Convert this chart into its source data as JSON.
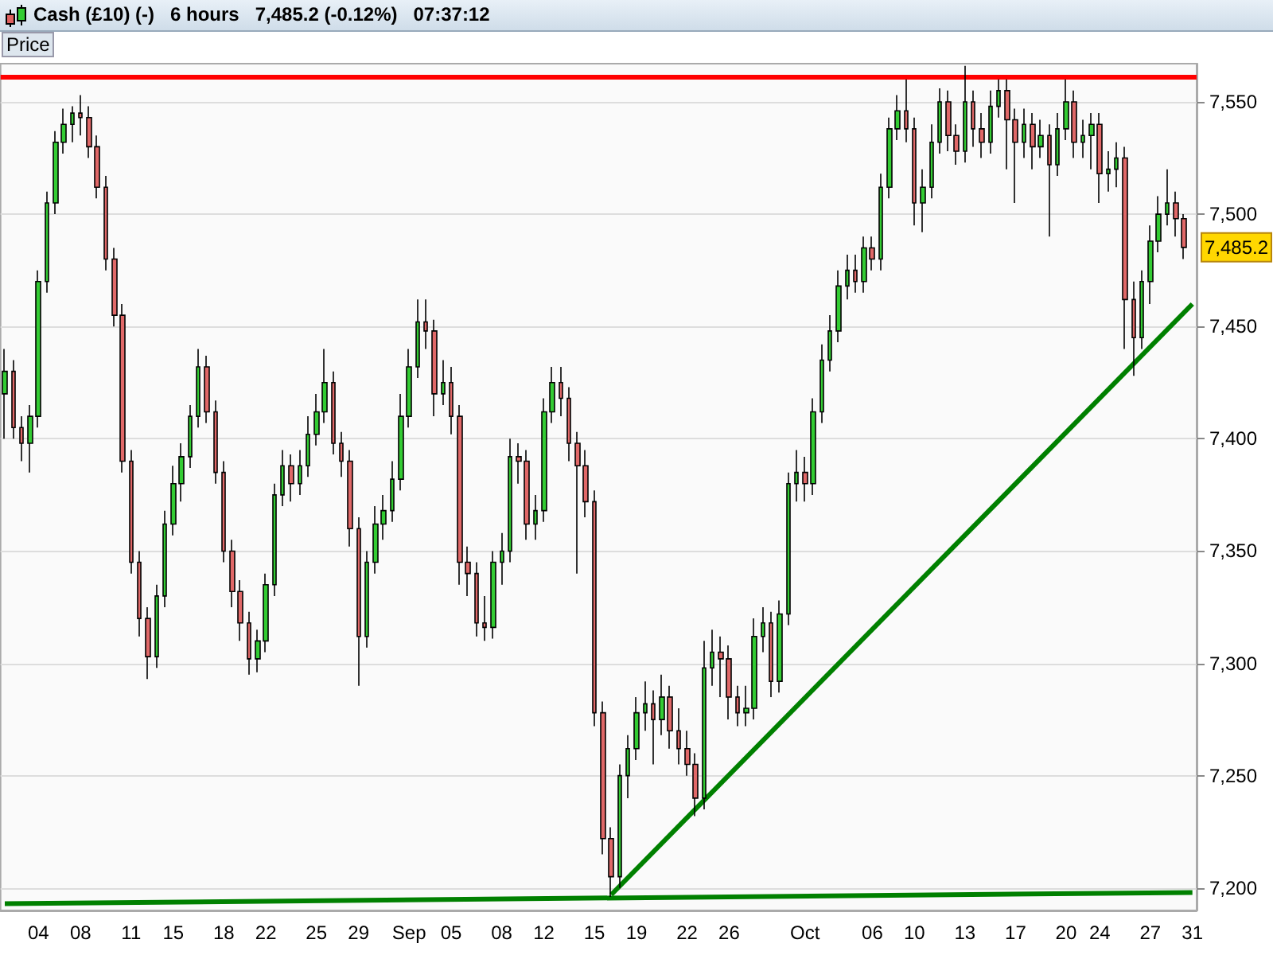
{
  "chart_data": {
    "type": "candlestick",
    "title": "Cash (£10) (-)   6 hours   7,485.2 (-0.12%)   07:37:12",
    "categories": [
      null,
      null,
      null,
      null,
      "04",
      null,
      null,
      null,
      null,
      "08",
      null,
      null,
      null,
      null,
      null,
      "11",
      null,
      null,
      null,
      null,
      "15",
      null,
      null,
      null,
      null,
      null,
      "18",
      null,
      null,
      null,
      null,
      "22",
      null,
      null,
      null,
      null,
      null,
      "25",
      null,
      null,
      null,
      null,
      "29",
      null,
      null,
      null,
      null,
      null,
      "Sep",
      null,
      null,
      null,
      null,
      "05",
      null,
      null,
      null,
      null,
      null,
      "08",
      null,
      null,
      null,
      null,
      "12",
      null,
      null,
      null,
      null,
      null,
      "15",
      null,
      null,
      null,
      null,
      "19",
      null,
      null,
      null,
      null,
      null,
      "22",
      null,
      null,
      null,
      null,
      "26",
      null,
      null,
      null,
      null,
      null,
      null,
      null,
      null,
      "Oct",
      null,
      null,
      null,
      null,
      null,
      null,
      null,
      "06",
      null,
      null,
      null,
      null,
      "10",
      null,
      null,
      null,
      null,
      null,
      "13",
      null,
      null,
      null,
      null,
      null,
      "17",
      null,
      null,
      null,
      null,
      null,
      "20",
      null,
      null,
      null,
      "24",
      null,
      null,
      null,
      null,
      null,
      "27",
      null,
      null,
      null,
      null,
      "31"
    ],
    "ohlc": [
      [
        7420,
        7440,
        7400,
        7430
      ],
      [
        7430,
        7435,
        7400,
        7405
      ],
      [
        7405,
        7410,
        7390,
        7398
      ],
      [
        7398,
        7415,
        7385,
        7410
      ],
      [
        7410,
        7475,
        7405,
        7470
      ],
      [
        7470,
        7510,
        7465,
        7505
      ],
      [
        7505,
        7537,
        7500,
        7532
      ],
      [
        7532,
        7547,
        7527,
        7540
      ],
      [
        7540,
        7548,
        7532,
        7545
      ],
      [
        7545,
        7553,
        7535,
        7543
      ],
      [
        7543,
        7548,
        7525,
        7530
      ],
      [
        7530,
        7535,
        7507,
        7512
      ],
      [
        7512,
        7517,
        7475,
        7480
      ],
      [
        7480,
        7485,
        7450,
        7455
      ],
      [
        7455,
        7460,
        7385,
        7390
      ],
      [
        7390,
        7395,
        7340,
        7345
      ],
      [
        7345,
        7350,
        7312,
        7320
      ],
      [
        7320,
        7325,
        7293,
        7303
      ],
      [
        7303,
        7335,
        7298,
        7330
      ],
      [
        7330,
        7368,
        7325,
        7362
      ],
      [
        7362,
        7388,
        7357,
        7380
      ],
      [
        7380,
        7398,
        7372,
        7392
      ],
      [
        7392,
        7415,
        7387,
        7410
      ],
      [
        7410,
        7440,
        7405,
        7432
      ],
      [
        7432,
        7437,
        7407,
        7412
      ],
      [
        7412,
        7417,
        7380,
        7385
      ],
      [
        7385,
        7390,
        7345,
        7350
      ],
      [
        7350,
        7355,
        7325,
        7332
      ],
      [
        7332,
        7337,
        7310,
        7318
      ],
      [
        7318,
        7323,
        7295,
        7302
      ],
      [
        7302,
        7315,
        7296,
        7310
      ],
      [
        7310,
        7340,
        7305,
        7335
      ],
      [
        7335,
        7380,
        7330,
        7375
      ],
      [
        7375,
        7395,
        7370,
        7388
      ],
      [
        7388,
        7393,
        7372,
        7380
      ],
      [
        7380,
        7395,
        7375,
        7388
      ],
      [
        7388,
        7410,
        7383,
        7402
      ],
      [
        7402,
        7420,
        7397,
        7412
      ],
      [
        7412,
        7440,
        7407,
        7425
      ],
      [
        7425,
        7430,
        7393,
        7398
      ],
      [
        7398,
        7403,
        7383,
        7390
      ],
      [
        7390,
        7395,
        7352,
        7360
      ],
      [
        7360,
        7365,
        7290,
        7312
      ],
      [
        7312,
        7350,
        7307,
        7345
      ],
      [
        7345,
        7370,
        7340,
        7362
      ],
      [
        7362,
        7375,
        7355,
        7368
      ],
      [
        7368,
        7390,
        7363,
        7382
      ],
      [
        7382,
        7420,
        7377,
        7410
      ],
      [
        7410,
        7440,
        7405,
        7432
      ],
      [
        7432,
        7462,
        7427,
        7452
      ],
      [
        7452,
        7462,
        7440,
        7448
      ],
      [
        7448,
        7453,
        7410,
        7420
      ],
      [
        7420,
        7435,
        7415,
        7425
      ],
      [
        7425,
        7432,
        7402,
        7410
      ],
      [
        7410,
        7415,
        7335,
        7345
      ],
      [
        7345,
        7352,
        7330,
        7340
      ],
      [
        7340,
        7345,
        7312,
        7318
      ],
      [
        7318,
        7330,
        7310,
        7316
      ],
      [
        7316,
        7350,
        7311,
        7345
      ],
      [
        7345,
        7358,
        7335,
        7350
      ],
      [
        7350,
        7400,
        7345,
        7392
      ],
      [
        7392,
        7398,
        7380,
        7390
      ],
      [
        7390,
        7395,
        7355,
        7362
      ],
      [
        7362,
        7375,
        7355,
        7368
      ],
      [
        7368,
        7418,
        7363,
        7412
      ],
      [
        7412,
        7432,
        7407,
        7425
      ],
      [
        7425,
        7432,
        7410,
        7418
      ],
      [
        7418,
        7423,
        7390,
        7398
      ],
      [
        7398,
        7403,
        7340,
        7388
      ],
      [
        7388,
        7395,
        7365,
        7372
      ],
      [
        7372,
        7377,
        7272,
        7278
      ],
      [
        7278,
        7283,
        7215,
        7222
      ],
      [
        7222,
        7227,
        7196,
        7205
      ],
      [
        7205,
        7255,
        7200,
        7250
      ],
      [
        7250,
        7268,
        7240,
        7262
      ],
      [
        7262,
        7285,
        7257,
        7278
      ],
      [
        7278,
        7292,
        7270,
        7282
      ],
      [
        7282,
        7288,
        7255,
        7275
      ],
      [
        7275,
        7295,
        7268,
        7285
      ],
      [
        7285,
        7290,
        7262,
        7270
      ],
      [
        7270,
        7280,
        7255,
        7262
      ],
      [
        7262,
        7270,
        7250,
        7255
      ],
      [
        7255,
        7260,
        7232,
        7240
      ],
      [
        7240,
        7310,
        7235,
        7298
      ],
      [
        7298,
        7315,
        7290,
        7305
      ],
      [
        7305,
        7312,
        7285,
        7302
      ],
      [
        7302,
        7308,
        7275,
        7285
      ],
      [
        7285,
        7290,
        7272,
        7278
      ],
      [
        7278,
        7290,
        7272,
        7280
      ],
      [
        7280,
        7320,
        7275,
        7312
      ],
      [
        7312,
        7325,
        7305,
        7318
      ],
      [
        7318,
        7323,
        7285,
        7292
      ],
      [
        7292,
        7328,
        7287,
        7322
      ],
      [
        7322,
        7385,
        7317,
        7380
      ],
      [
        7380,
        7395,
        7372,
        7385
      ],
      [
        7385,
        7392,
        7372,
        7380
      ],
      [
        7380,
        7418,
        7375,
        7412
      ],
      [
        7412,
        7442,
        7407,
        7435
      ],
      [
        7435,
        7455,
        7430,
        7448
      ],
      [
        7448,
        7475,
        7443,
        7468
      ],
      [
        7468,
        7482,
        7462,
        7475
      ],
      [
        7475,
        7482,
        7465,
        7470
      ],
      [
        7470,
        7490,
        7465,
        7485
      ],
      [
        7485,
        7490,
        7475,
        7480
      ],
      [
        7480,
        7518,
        7475,
        7512
      ],
      [
        7512,
        7543,
        7507,
        7538
      ],
      [
        7538,
        7553,
        7533,
        7546
      ],
      [
        7546,
        7560,
        7532,
        7538
      ],
      [
        7538,
        7543,
        7495,
        7505
      ],
      [
        7505,
        7520,
        7492,
        7512
      ],
      [
        7512,
        7540,
        7507,
        7532
      ],
      [
        7532,
        7556,
        7527,
        7550
      ],
      [
        7550,
        7555,
        7528,
        7535
      ],
      [
        7535,
        7540,
        7522,
        7528
      ],
      [
        7528,
        7566,
        7523,
        7550
      ],
      [
        7550,
        7555,
        7530,
        7538
      ],
      [
        7538,
        7545,
        7525,
        7532
      ],
      [
        7532,
        7555,
        7527,
        7548
      ],
      [
        7548,
        7560,
        7543,
        7555
      ],
      [
        7555,
        7560,
        7520,
        7542
      ],
      [
        7542,
        7547,
        7505,
        7532
      ],
      [
        7532,
        7547,
        7525,
        7540
      ],
      [
        7540,
        7545,
        7520,
        7530
      ],
      [
        7530,
        7542,
        7525,
        7535
      ],
      [
        7535,
        7540,
        7490,
        7522
      ],
      [
        7522,
        7545,
        7517,
        7538
      ],
      [
        7538,
        7560,
        7533,
        7550
      ],
      [
        7550,
        7555,
        7525,
        7532
      ],
      [
        7532,
        7542,
        7525,
        7535
      ],
      [
        7535,
        7545,
        7520,
        7540
      ],
      [
        7540,
        7545,
        7505,
        7518
      ],
      [
        7518,
        7528,
        7510,
        7520
      ],
      [
        7520,
        7532,
        7512,
        7525
      ],
      [
        7525,
        7530,
        7440,
        7462
      ],
      [
        7462,
        7470,
        7428,
        7445
      ],
      [
        7445,
        7475,
        7440,
        7470
      ],
      [
        7470,
        7495,
        7460,
        7488
      ],
      [
        7488,
        7508,
        7483,
        7500
      ],
      [
        7500,
        7520,
        7495,
        7505
      ],
      [
        7505,
        7510,
        7490,
        7498
      ],
      [
        7498,
        7500,
        7480,
        7485.2
      ],
      null
    ],
    "series": [
      {
        "type": "line",
        "color": "#008000",
        "values": [
          7193,
          null,
          null,
          null,
          null,
          null,
          null,
          null,
          null,
          null,
          null,
          null,
          null,
          null,
          null,
          null,
          null,
          null,
          null,
          null,
          null,
          null,
          null,
          null,
          null,
          null,
          null,
          null,
          null,
          null,
          null,
          null,
          null,
          null,
          null,
          null,
          null,
          null,
          null,
          null,
          null,
          null,
          null,
          null,
          null,
          null,
          null,
          null,
          null,
          null,
          null,
          null,
          null,
          null,
          null,
          null,
          null,
          null,
          null,
          null,
          null,
          null,
          null,
          null,
          null,
          null,
          null,
          null,
          null,
          null,
          null,
          null,
          null,
          null,
          null,
          null,
          null,
          null,
          null,
          null,
          null,
          null,
          null,
          null,
          null,
          null,
          null,
          null,
          null,
          null,
          null,
          null,
          null,
          null,
          null,
          null,
          null,
          null,
          null,
          null,
          null,
          null,
          null,
          null,
          null,
          null,
          null,
          null,
          null,
          null,
          null,
          null,
          null,
          null,
          null,
          null,
          null,
          null,
          null,
          null,
          null,
          null,
          null,
          null,
          null,
          null,
          null,
          null,
          null,
          null,
          null,
          null,
          null,
          null,
          null,
          null,
          null,
          null,
          null,
          null,
          null,
          7198
        ]
      },
      {
        "type": "line",
        "color": "#008000",
        "values": [
          null,
          null,
          null,
          null,
          null,
          null,
          null,
          null,
          null,
          null,
          null,
          null,
          null,
          null,
          null,
          null,
          null,
          null,
          null,
          null,
          null,
          null,
          null,
          null,
          null,
          null,
          null,
          null,
          null,
          null,
          null,
          null,
          null,
          null,
          null,
          null,
          null,
          null,
          null,
          null,
          null,
          null,
          null,
          null,
          null,
          null,
          null,
          null,
          null,
          null,
          null,
          null,
          null,
          null,
          null,
          null,
          null,
          null,
          null,
          null,
          null,
          null,
          null,
          null,
          null,
          null,
          null,
          null,
          null,
          null,
          null,
          null,
          7197,
          null,
          null,
          null,
          null,
          null,
          null,
          null,
          null,
          null,
          null,
          null,
          null,
          null,
          null,
          null,
          null,
          null,
          null,
          null,
          null,
          null,
          null,
          null,
          null,
          null,
          null,
          null,
          null,
          null,
          null,
          null,
          null,
          null,
          null,
          null,
          null,
          null,
          null,
          null,
          null,
          null,
          null,
          null,
          null,
          null,
          null,
          null,
          null,
          null,
          null,
          null,
          null,
          null,
          null,
          null,
          null,
          null,
          null,
          null,
          null,
          null,
          null,
          null,
          null,
          null,
          null,
          null,
          null,
          7460
        ]
      }
    ],
    "marker": "none",
    "ylim": [
      7190,
      7567
    ],
    "yticks": [
      {
        "value": 7200,
        "label": "7,200"
      },
      {
        "value": 7250,
        "label": "7,250"
      },
      {
        "value": 7300,
        "label": "7,300"
      },
      {
        "value": 7350,
        "label": "7,350"
      },
      {
        "value": 7400,
        "label": "7,400"
      },
      {
        "value": 7450,
        "label": "7,450"
      },
      {
        "value": 7500,
        "label": "7,500"
      },
      {
        "value": 7550,
        "label": "7,550"
      }
    ],
    "grid": "y",
    "ref_lines": [
      {
        "axis": "y",
        "value": 7561,
        "color": "#ff0000"
      }
    ],
    "annotations": [
      "Price",
      {
        "text": "7,485.2",
        "y": 7485.2
      }
    ]
  }
}
